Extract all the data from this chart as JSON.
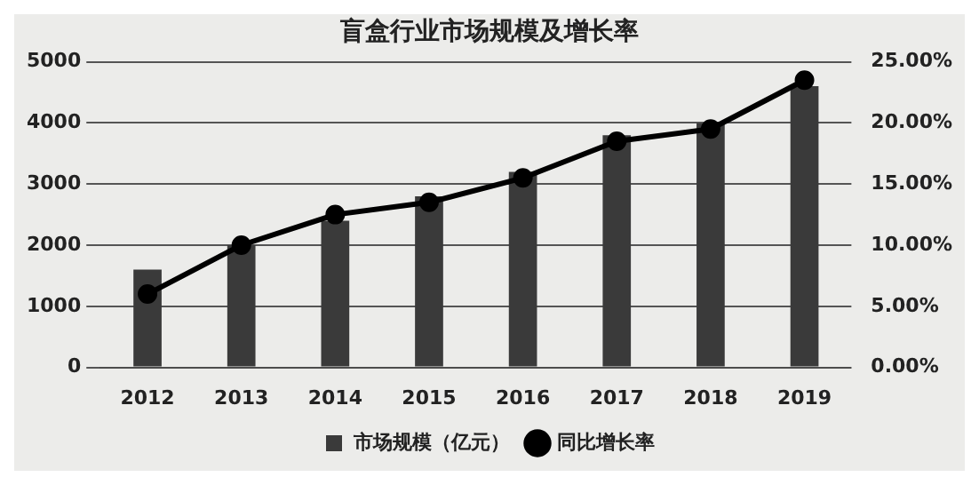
{
  "chart_data": {
    "type": "bar",
    "title": "盲盒行业市场规模及增长率",
    "categories": [
      "2012",
      "2013",
      "2014",
      "2015",
      "2016",
      "2017",
      "2018",
      "2019"
    ],
    "series": [
      {
        "name": "市场规模（亿元）",
        "color": "#3a3a3a",
        "values": [
          1600,
          2000,
          2400,
          2800,
          3200,
          3800,
          4000,
          4600
        ]
      },
      {
        "name": "同比增长率",
        "type": "line",
        "axis": "y2",
        "color": "#000000",
        "values": [
          6,
          10,
          12.5,
          13.5,
          15.5,
          18.5,
          19.5,
          23.5
        ]
      }
    ],
    "ylim": [
      0,
      5000
    ],
    "yticks": [
      0,
      1000,
      2000,
      3000,
      4000,
      5000
    ],
    "y2lim": [
      0,
      25
    ],
    "y2ticks": [
      {
        "value": 0,
        "label": "0.00%"
      },
      {
        "value": 5,
        "label": "5.00%"
      },
      {
        "value": 10,
        "label": "10.00%"
      },
      {
        "value": 15,
        "label": "15.00%"
      },
      {
        "value": 20,
        "label": "20.00%"
      },
      {
        "value": 25,
        "label": "25.00%"
      }
    ],
    "grid": "y",
    "legend": "bottom",
    "marker": "circle",
    "line_style": "solid"
  }
}
